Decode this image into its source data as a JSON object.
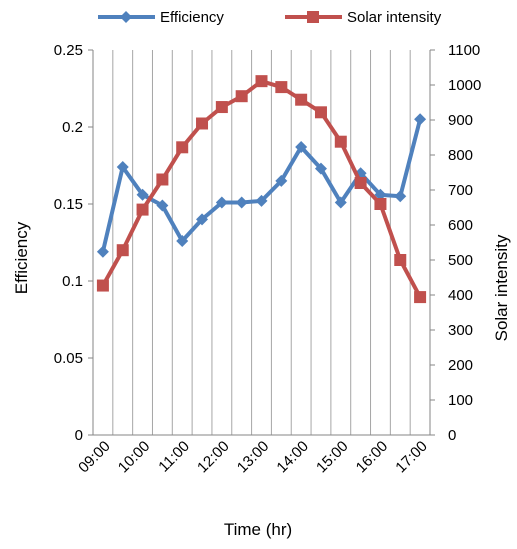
{
  "chart_data": {
    "type": "line",
    "xlabel": "Time (hr)",
    "x_tick_labels": [
      "09:00",
      "10:00",
      "11:00",
      "12:00",
      "13:00",
      "14:00",
      "15:00",
      "16:00",
      "17:00"
    ],
    "x": [
      "09:00",
      "09:30",
      "10:00",
      "10:30",
      "11:00",
      "11:30",
      "12:00",
      "12:30",
      "13:00",
      "13:30",
      "14:00",
      "14:30",
      "15:00",
      "15:30",
      "16:00",
      "16:30",
      "17:00"
    ],
    "y_left": {
      "label": "Efficiency",
      "ylim": [
        0,
        0.25
      ],
      "ticks": [
        "0",
        "0.05",
        "0.1",
        "0.15",
        "0.2",
        "0.25"
      ]
    },
    "y_right": {
      "label": "Solar intensity",
      "ylim": [
        0,
        1100
      ],
      "ticks": [
        "0",
        "100",
        "200",
        "300",
        "400",
        "500",
        "600",
        "700",
        "800",
        "900",
        "1000",
        "1100"
      ]
    },
    "grid": "vertical",
    "legend_placement": "top",
    "series": [
      {
        "name": "Efficiency",
        "axis": "left",
        "color": "#4F81BD",
        "marker": "diamond",
        "values": [
          0.119,
          0.174,
          0.156,
          0.149,
          0.126,
          0.14,
          0.151,
          0.151,
          0.152,
          0.165,
          0.187,
          0.173,
          0.151,
          0.17,
          0.156,
          0.155,
          0.205
        ]
      },
      {
        "name": "Solar intensity",
        "axis": "right",
        "color": "#C0504D",
        "marker": "square",
        "values": [
          427,
          528,
          644,
          730,
          822,
          890,
          937,
          968,
          1011,
          994,
          958,
          922,
          838,
          720,
          660,
          500,
          394
        ]
      }
    ]
  }
}
